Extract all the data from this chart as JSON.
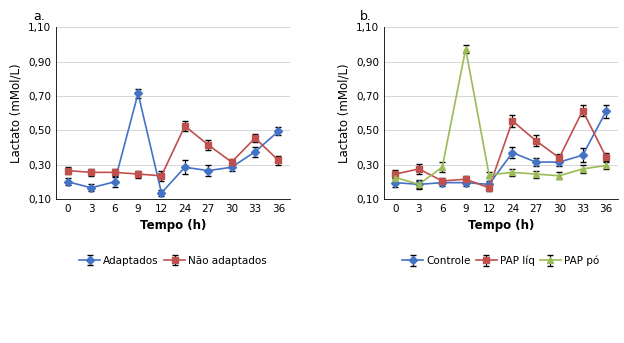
{
  "x": [
    0,
    3,
    6,
    9,
    12,
    24,
    27,
    30,
    33,
    36
  ],
  "x_positions": [
    0,
    1,
    2,
    3,
    4,
    5,
    6,
    7,
    8,
    9
  ],
  "x_labels": [
    "0",
    "3",
    "6",
    "9",
    "12",
    "24",
    "27",
    "30",
    "33",
    "36"
  ],
  "panel_a": {
    "adaptados": {
      "y": [
        0.2,
        0.165,
        0.2,
        0.715,
        0.135,
        0.285,
        0.265,
        0.285,
        0.375,
        0.495
      ],
      "yerr": [
        0.02,
        0.02,
        0.03,
        0.025,
        0.015,
        0.04,
        0.03,
        0.02,
        0.03,
        0.025
      ],
      "color": "#4472C4",
      "marker": "D",
      "label": "Adaptados"
    },
    "nao_adaptados": {
      "y": [
        0.265,
        0.255,
        0.255,
        0.245,
        0.235,
        0.525,
        0.415,
        0.315,
        0.455,
        0.325
      ],
      "yerr": [
        0.02,
        0.02,
        0.02,
        0.02,
        0.03,
        0.03,
        0.03,
        0.02,
        0.025,
        0.025
      ],
      "color": "#C0504D",
      "marker": "s",
      "label": "Não adaptados"
    }
  },
  "panel_b": {
    "controle": {
      "y": [
        0.195,
        0.185,
        0.195,
        0.195,
        0.185,
        0.37,
        0.315,
        0.315,
        0.355,
        0.61
      ],
      "yerr": [
        0.025,
        0.02,
        0.02,
        0.02,
        0.02,
        0.03,
        0.025,
        0.025,
        0.04,
        0.04
      ],
      "color": "#4472C4",
      "marker": "D",
      "label": "Controle"
    },
    "pap_liq": {
      "y": [
        0.245,
        0.275,
        0.205,
        0.215,
        0.165,
        0.555,
        0.44,
        0.34,
        0.615,
        0.345
      ],
      "yerr": [
        0.025,
        0.03,
        0.02,
        0.02,
        0.02,
        0.035,
        0.03,
        0.02,
        0.03,
        0.025
      ],
      "color": "#C0504D",
      "marker": "s",
      "label": "PAP líq"
    },
    "pap_po": {
      "y": [
        0.225,
        0.185,
        0.285,
        0.975,
        0.24,
        0.255,
        0.245,
        0.235,
        0.275,
        0.295
      ],
      "yerr": [
        0.02,
        0.025,
        0.03,
        0.025,
        0.015,
        0.02,
        0.02,
        0.02,
        0.025,
        0.02
      ],
      "color": "#9BBB59",
      "marker": "^",
      "label": "PAP pó"
    }
  },
  "ylim": [
    0.1,
    1.1
  ],
  "yticks": [
    0.1,
    0.3,
    0.5,
    0.7,
    0.9,
    1.1
  ],
  "ytick_labels": [
    "0,10",
    "0,30",
    "0,50",
    "0,70",
    "0,90",
    "1,10"
  ],
  "xlabel": "Tempo (h)",
  "ylabel": "Lactato (mMol/L)",
  "bg_color": "#FFFFFF",
  "grid_color": "#D0D0D0",
  "label_a": "a.",
  "label_b": "b.",
  "linewidth": 1.2,
  "markersize": 4,
  "capsize": 2,
  "elinewidth": 0.8
}
